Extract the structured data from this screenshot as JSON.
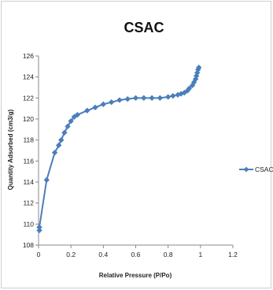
{
  "chart_data": {
    "type": "scatter",
    "title": "CSAC",
    "xlabel": "Relative Pressure (P/Po)",
    "ylabel": "Quantity Adsorbed (cm3/g)",
    "xlim": [
      0,
      1.2
    ],
    "ylim": [
      108,
      126
    ],
    "xticks": [
      "0",
      "0.2",
      "0.4",
      "0.6",
      "0.8",
      "1",
      "1.2"
    ],
    "yticks": [
      "108",
      "110",
      "112",
      "114",
      "116",
      "118",
      "120",
      "122",
      "124",
      "126"
    ],
    "grid": false,
    "legend_position": "right",
    "series": [
      {
        "name": "CSAC",
        "color": "#4a7ebb",
        "marker": "diamond",
        "points": [
          [
            0.005,
            109.4
          ],
          [
            0.005,
            109.7
          ],
          [
            0.05,
            114.2
          ],
          [
            0.1,
            116.8
          ],
          [
            0.125,
            117.5
          ],
          [
            0.14,
            118.0
          ],
          [
            0.16,
            118.7
          ],
          [
            0.18,
            119.3
          ],
          [
            0.2,
            119.8
          ],
          [
            0.22,
            120.2
          ],
          [
            0.24,
            120.4
          ],
          [
            0.3,
            120.8
          ],
          [
            0.35,
            121.1
          ],
          [
            0.4,
            121.4
          ],
          [
            0.45,
            121.6
          ],
          [
            0.5,
            121.8
          ],
          [
            0.55,
            121.9
          ],
          [
            0.6,
            122.0
          ],
          [
            0.65,
            122.0
          ],
          [
            0.7,
            122.0
          ],
          [
            0.75,
            122.0
          ],
          [
            0.8,
            122.1
          ],
          [
            0.83,
            122.2
          ],
          [
            0.86,
            122.3
          ],
          [
            0.88,
            122.4
          ],
          [
            0.9,
            122.5
          ],
          [
            0.92,
            122.7
          ],
          [
            0.93,
            122.9
          ],
          [
            0.95,
            123.2
          ],
          [
            0.96,
            123.5
          ],
          [
            0.97,
            123.8
          ],
          [
            0.975,
            124.1
          ],
          [
            0.98,
            124.4
          ],
          [
            0.985,
            124.7
          ],
          [
            0.99,
            124.9
          ]
        ]
      }
    ]
  }
}
